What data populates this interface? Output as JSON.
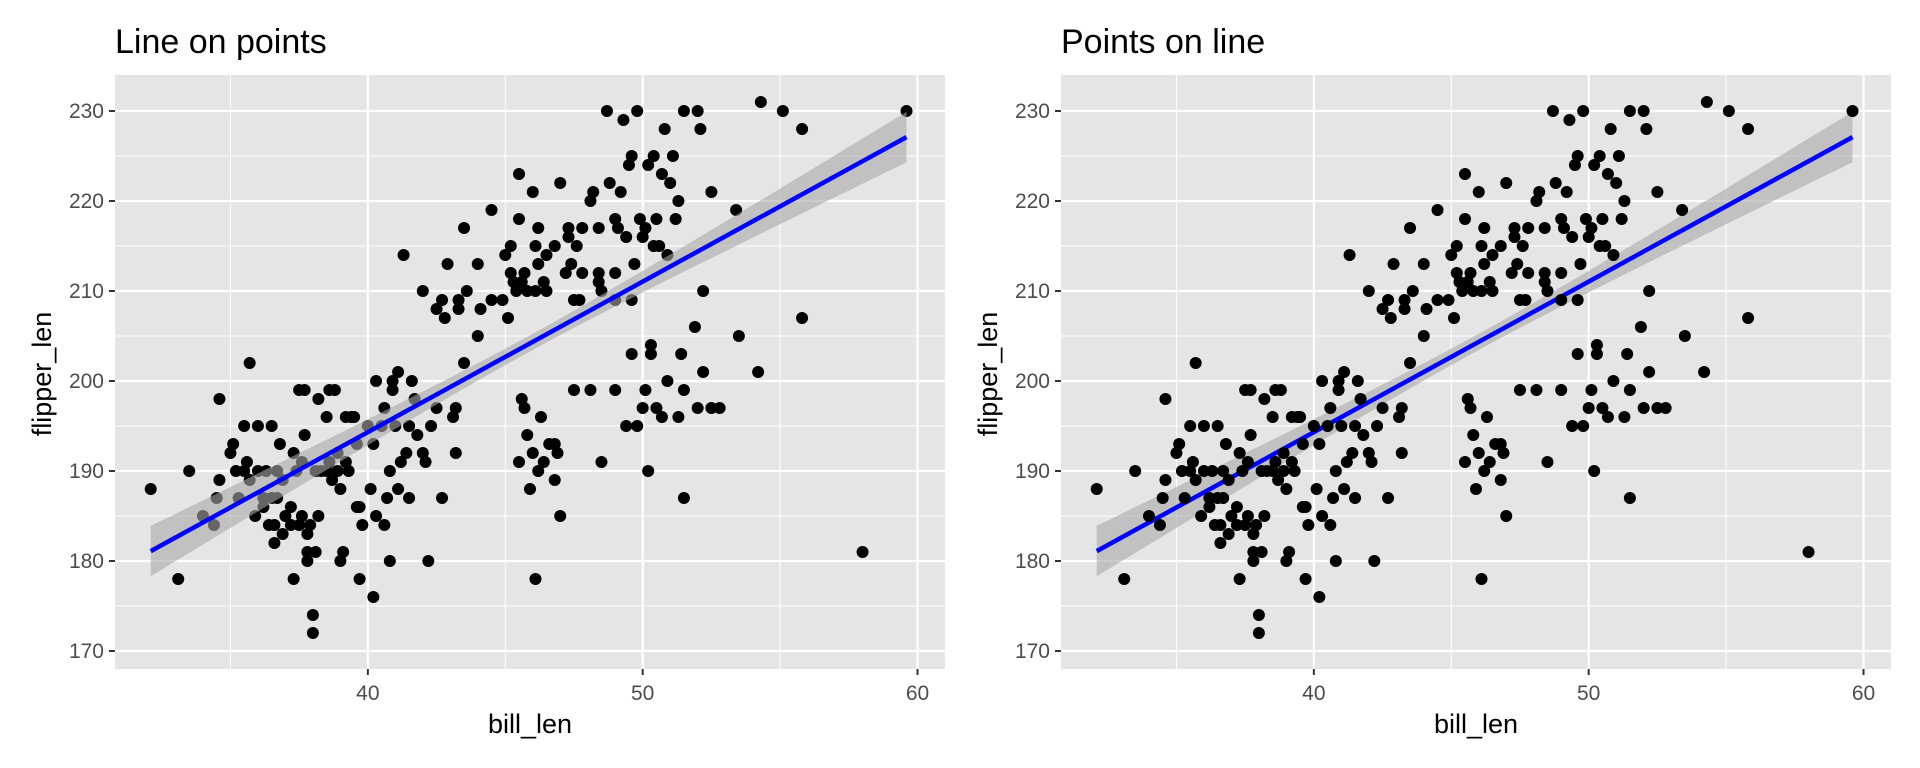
{
  "figure": {
    "background": "#ffffff",
    "panel_background": "#e5e5e5",
    "grid_color": "#ffffff",
    "point_color": "#000000",
    "line_color": "#0000ff",
    "band_color": "#a8a8a8"
  },
  "chart_data": [
    {
      "type": "scatter",
      "title": "Line on points",
      "layer_order": "line-on-points",
      "xlabel": "bill_len",
      "ylabel": "flipper_len",
      "xlim": [
        30.8,
        61.0
      ],
      "ylim": [
        168,
        234
      ],
      "xticks": [
        40,
        50,
        60
      ],
      "yticks": [
        170,
        180,
        190,
        200,
        210,
        220,
        230
      ],
      "grid": true,
      "legend": "none",
      "smooth": {
        "method": "lm",
        "x_range": [
          32.1,
          59.6
        ],
        "y_range": [
          181.1,
          227.1
        ],
        "ci_at_ends": [
          2.8,
          2.8
        ],
        "ci_at_center": 0.9
      },
      "points": [
        [
          32.1,
          188
        ],
        [
          33.1,
          178
        ],
        [
          33.5,
          190
        ],
        [
          34.0,
          185
        ],
        [
          34.4,
          184
        ],
        [
          34.5,
          187
        ],
        [
          34.6,
          198
        ],
        [
          34.6,
          189
        ],
        [
          35.0,
          192
        ],
        [
          35.1,
          193
        ],
        [
          35.2,
          190
        ],
        [
          35.3,
          187
        ],
        [
          35.5,
          195
        ],
        [
          35.5,
          190
        ],
        [
          35.6,
          191
        ],
        [
          35.7,
          202
        ],
        [
          35.7,
          189
        ],
        [
          35.9,
          185
        ],
        [
          36.0,
          195
        ],
        [
          36.0,
          190
        ],
        [
          36.2,
          187
        ],
        [
          36.2,
          186
        ],
        [
          36.3,
          190
        ],
        [
          36.4,
          184
        ],
        [
          36.5,
          195
        ],
        [
          36.6,
          184
        ],
        [
          36.7,
          190
        ],
        [
          36.7,
          187
        ],
        [
          36.8,
          193
        ],
        [
          36.9,
          189
        ],
        [
          37.0,
          185
        ],
        [
          37.2,
          184
        ],
        [
          37.3,
          178
        ],
        [
          37.3,
          192
        ],
        [
          37.5,
          199
        ],
        [
          37.6,
          191
        ],
        [
          37.6,
          185
        ],
        [
          37.7,
          199
        ],
        [
          37.7,
          194
        ],
        [
          37.8,
          180
        ],
        [
          37.8,
          181
        ],
        [
          37.8,
          183
        ],
        [
          37.9,
          184
        ],
        [
          38.0,
          174
        ],
        [
          38.0,
          172
        ],
        [
          38.1,
          190
        ],
        [
          38.1,
          181
        ],
        [
          38.2,
          198
        ],
        [
          38.3,
          190
        ],
        [
          38.5,
          190
        ],
        [
          38.6,
          191
        ],
        [
          38.7,
          189
        ],
        [
          38.8,
          199
        ],
        [
          38.9,
          190
        ],
        [
          39.0,
          180
        ],
        [
          39.1,
          181
        ],
        [
          39.2,
          196
        ],
        [
          39.3,
          190
        ],
        [
          39.5,
          196
        ],
        [
          39.6,
          186
        ],
        [
          39.7,
          178
        ],
        [
          39.8,
          184
        ],
        [
          40.1,
          188
        ],
        [
          40.2,
          176
        ],
        [
          40.3,
          200
        ],
        [
          40.6,
          184
        ],
        [
          40.7,
          187
        ],
        [
          40.8,
          190
        ],
        [
          40.9,
          199
        ],
        [
          41.1,
          188
        ],
        [
          41.3,
          214
        ],
        [
          41.4,
          192
        ],
        [
          41.5,
          195
        ],
        [
          41.7,
          198
        ],
        [
          42.0,
          210
        ],
        [
          42.2,
          180
        ],
        [
          42.3,
          195
        ],
        [
          42.5,
          197
        ],
        [
          42.7,
          187
        ],
        [
          42.9,
          213
        ],
        [
          43.1,
          196
        ],
        [
          43.2,
          192
        ],
        [
          43.3,
          209
        ],
        [
          43.5,
          217
        ],
        [
          43.6,
          210
        ],
        [
          44.0,
          213
        ],
        [
          44.5,
          219
        ],
        [
          44.9,
          209
        ],
        [
          45.0,
          214
        ],
        [
          45.2,
          215
        ],
        [
          45.4,
          210
        ],
        [
          45.5,
          223
        ],
        [
          45.7,
          212
        ],
        [
          45.8,
          210
        ],
        [
          46.0,
          221
        ],
        [
          46.1,
          215
        ],
        [
          46.2,
          213
        ],
        [
          46.4,
          211
        ],
        [
          46.5,
          210
        ],
        [
          46.6,
          193
        ],
        [
          46.8,
          215
        ],
        [
          47.0,
          222
        ],
        [
          47.2,
          212
        ],
        [
          47.3,
          216
        ],
        [
          47.5,
          209
        ],
        [
          47.6,
          215
        ],
        [
          47.8,
          212
        ],
        [
          48.1,
          220
        ],
        [
          48.2,
          221
        ],
        [
          48.4,
          212
        ],
        [
          48.5,
          210
        ],
        [
          48.7,
          230
        ],
        [
          48.8,
          222
        ],
        [
          49.0,
          212
        ],
        [
          49.1,
          217
        ],
        [
          49.2,
          221
        ],
        [
          49.3,
          229
        ],
        [
          49.5,
          224
        ],
        [
          49.6,
          225
        ],
        [
          49.8,
          230
        ],
        [
          50.0,
          216
        ],
        [
          50.2,
          224
        ],
        [
          50.4,
          225
        ],
        [
          50.5,
          218
        ],
        [
          50.7,
          223
        ],
        [
          50.8,
          228
        ],
        [
          51.0,
          222
        ],
        [
          51.1,
          225
        ],
        [
          51.3,
          220
        ],
        [
          51.5,
          230
        ],
        [
          52.0,
          230
        ],
        [
          52.1,
          228
        ],
        [
          52.5,
          221
        ],
        [
          53.4,
          219
        ],
        [
          54.3,
          231
        ],
        [
          55.1,
          230
        ],
        [
          55.8,
          228
        ],
        [
          59.6,
          230
        ],
        [
          44.1,
          208
        ],
        [
          44.5,
          209
        ],
        [
          45.1,
          207
        ],
        [
          45.2,
          212
        ],
        [
          45.3,
          211
        ],
        [
          45.6,
          211
        ],
        [
          46.1,
          210
        ],
        [
          46.5,
          214
        ],
        [
          47.4,
          213
        ],
        [
          47.7,
          209
        ],
        [
          48.4,
          211
        ],
        [
          49.0,
          209
        ],
        [
          49.4,
          216
        ],
        [
          49.9,
          218
        ],
        [
          50.1,
          217
        ],
        [
          50.6,
          215
        ],
        [
          52.2,
          210
        ],
        [
          51.9,
          206
        ],
        [
          45.7,
          197
        ],
        [
          45.5,
          191
        ],
        [
          45.8,
          194
        ],
        [
          46.0,
          192
        ],
        [
          46.2,
          190
        ],
        [
          46.3,
          196
        ],
        [
          46.4,
          191
        ],
        [
          45.9,
          188
        ],
        [
          46.9,
          192
        ],
        [
          46.8,
          189
        ],
        [
          47.0,
          185
        ],
        [
          46.1,
          178
        ],
        [
          49.0,
          199
        ],
        [
          49.4,
          195
        ],
        [
          49.6,
          203
        ],
        [
          49.8,
          195
        ],
        [
          50.0,
          197
        ],
        [
          50.1,
          199
        ],
        [
          50.3,
          203
        ],
        [
          50.5,
          197
        ],
        [
          50.7,
          196
        ],
        [
          50.9,
          200
        ],
        [
          51.3,
          196
        ],
        [
          51.4,
          203
        ],
        [
          51.5,
          199
        ],
        [
          52.0,
          197
        ],
        [
          52.2,
          201
        ],
        [
          52.5,
          197
        ],
        [
          52.8,
          197
        ],
        [
          53.5,
          205
        ],
        [
          54.2,
          201
        ],
        [
          55.8,
          207
        ],
        [
          58.0,
          181
        ],
        [
          51.5,
          187
        ],
        [
          50.2,
          190
        ],
        [
          48.5,
          191
        ],
        [
          47.5,
          199
        ],
        [
          48.1,
          199
        ],
        [
          45.6,
          198
        ],
        [
          46.8,
          193
        ],
        [
          49.6,
          209
        ],
        [
          50.3,
          204
        ],
        [
          40.9,
          200
        ],
        [
          41.1,
          201
        ],
        [
          41.6,
          200
        ],
        [
          42.0,
          192
        ],
        [
          42.1,
          191
        ],
        [
          41.0,
          195
        ],
        [
          40.6,
          197
        ],
        [
          40.5,
          195
        ],
        [
          40.2,
          193
        ],
        [
          41.8,
          194
        ],
        [
          40.8,
          180
        ],
        [
          41.2,
          191
        ],
        [
          40.3,
          185
        ],
        [
          41.5,
          187
        ],
        [
          38.6,
          199
        ],
        [
          38.9,
          192
        ],
        [
          39.0,
          188
        ],
        [
          39.2,
          191
        ],
        [
          39.7,
          186
        ],
        [
          39.6,
          193
        ],
        [
          38.2,
          185
        ],
        [
          37.5,
          184
        ],
        [
          37.4,
          190
        ],
        [
          36.9,
          183
        ],
        [
          36.6,
          182
        ],
        [
          36.5,
          187
        ],
        [
          37.2,
          186
        ],
        [
          38.5,
          196
        ],
        [
          39.4,
          196
        ],
        [
          40.0,
          195
        ],
        [
          43.2,
          197
        ],
        [
          43.5,
          202
        ],
        [
          42.7,
          209
        ],
        [
          42.5,
          208
        ],
        [
          42.8,
          207
        ],
        [
          43.3,
          208
        ],
        [
          44.0,
          205
        ],
        [
          45.5,
          218
        ],
        [
          46.2,
          217
        ],
        [
          47.3,
          217
        ],
        [
          47.8,
          217
        ],
        [
          48.4,
          217
        ],
        [
          49.0,
          218
        ],
        [
          49.7,
          213
        ],
        [
          50.4,
          215
        ],
        [
          50.9,
          214
        ],
        [
          51.2,
          218
        ]
      ]
    },
    {
      "type": "scatter",
      "title": "Points on line",
      "layer_order": "points-on-line",
      "xlabel": "bill_len",
      "ylabel": "flipper_len",
      "xlim": [
        30.8,
        61.0
      ],
      "ylim": [
        168,
        234
      ],
      "xticks": [
        40,
        50,
        60
      ],
      "yticks": [
        170,
        180,
        190,
        200,
        210,
        220,
        230
      ],
      "grid": true,
      "legend": "none",
      "smooth": {
        "method": "lm",
        "x_range": [
          32.1,
          59.6
        ],
        "y_range": [
          181.1,
          227.1
        ],
        "ci_at_ends": [
          2.8,
          2.8
        ],
        "ci_at_center": 0.9
      },
      "points_same_as_panel": 0
    }
  ]
}
